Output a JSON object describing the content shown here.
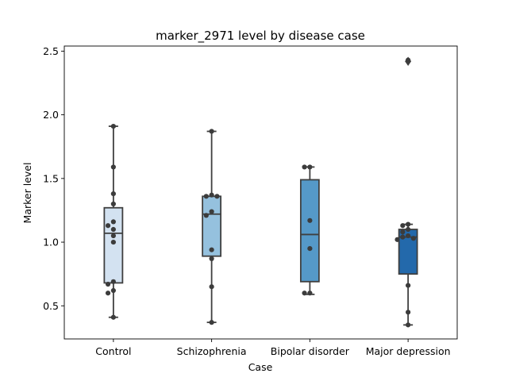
{
  "chart_data": {
    "type": "box",
    "title": "marker_2971 level by disease case",
    "xlabel": "Case",
    "ylabel": "Marker level",
    "ylim": [
      0.24,
      2.54
    ],
    "yticks": [
      0.5,
      1.0,
      1.5,
      2.0,
      2.5
    ],
    "ytick_labels": [
      "0.5",
      "1.0",
      "1.5",
      "2.0",
      "2.5"
    ],
    "grid": false,
    "categories": [
      "Control",
      "Schizophrenia",
      "Bipolar disorder",
      "Major depression"
    ],
    "colors": [
      "#d3e2f1",
      "#95c1de",
      "#5599c8",
      "#2369ab"
    ],
    "boxes": [
      {
        "whislo": 0.41,
        "q1": 0.68,
        "med": 1.07,
        "q3": 1.27,
        "whishi": 1.91,
        "fliers": []
      },
      {
        "whislo": 0.37,
        "q1": 0.89,
        "med": 1.22,
        "q3": 1.36,
        "whishi": 1.87,
        "fliers": []
      },
      {
        "whislo": 0.59,
        "q1": 0.69,
        "med": 1.06,
        "q3": 1.49,
        "whishi": 1.59,
        "fliers": []
      },
      {
        "whislo": 0.35,
        "q1": 0.75,
        "med": 1.04,
        "q3": 1.1,
        "whishi": 1.14,
        "fliers": [
          2.42
        ]
      }
    ],
    "points": [
      [
        1.91,
        1.59,
        1.38,
        1.3,
        1.16,
        1.13,
        1.1,
        1.05,
        1.0,
        0.69,
        0.67,
        0.62,
        0.6,
        0.41
      ],
      [
        1.87,
        1.37,
        1.36,
        1.36,
        1.24,
        1.21,
        0.94,
        0.87,
        0.65,
        0.37
      ],
      [
        1.59,
        1.59,
        1.17,
        0.95,
        0.6,
        0.6
      ],
      [
        2.43,
        1.14,
        1.13,
        1.1,
        1.08,
        1.05,
        1.04,
        1.03,
        1.02,
        0.66,
        0.45,
        0.35
      ]
    ]
  }
}
